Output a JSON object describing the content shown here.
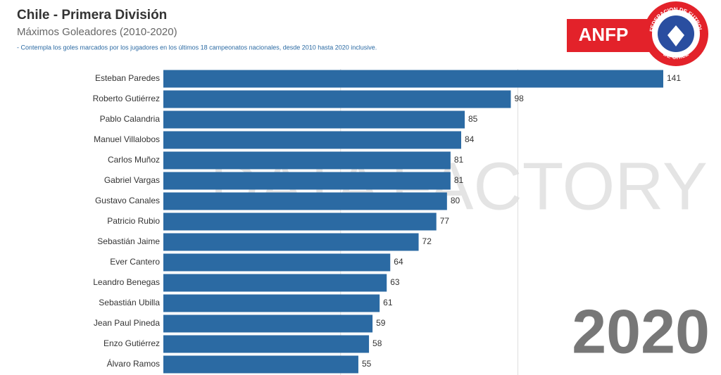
{
  "chart_data": {
    "type": "bar",
    "orientation": "horizontal",
    "title": "Chile - Primera División",
    "subtitle": "Máximos Goleadores (2010-2020)",
    "note": "- Contempla los goles marcados por los jugadores en los últimos 18 campeonatos nacionales, desde 2010 hasta 2020 inclusive.",
    "watermark": [
      "DATA",
      "FACTORY"
    ],
    "logo": {
      "text": "ANFP",
      "ring_top": "FEDERACION DE FUTBOL",
      "ring_bottom": "DE CHILE"
    },
    "year": "2020",
    "categories": [
      "Esteban Paredes",
      "Roberto Gutiérrez",
      "Pablo Calandria",
      "Manuel Villalobos",
      "Carlos Muñoz",
      "Gabriel Vargas",
      "Gustavo Canales",
      "Patricio Rubio",
      "Sebastián Jaime",
      "Ever Cantero",
      "Leandro Benegas",
      "Sebastián Ubilla",
      "Jean Paul Pineda",
      "Enzo Gutiérrez",
      "Álvaro Ramos"
    ],
    "values": [
      141,
      98,
      85,
      84,
      81,
      81,
      80,
      77,
      72,
      64,
      63,
      61,
      59,
      58,
      55
    ],
    "color": "#2b6aa3",
    "xlim": [
      0,
      141
    ],
    "grid_lines": [
      50,
      100
    ]
  }
}
